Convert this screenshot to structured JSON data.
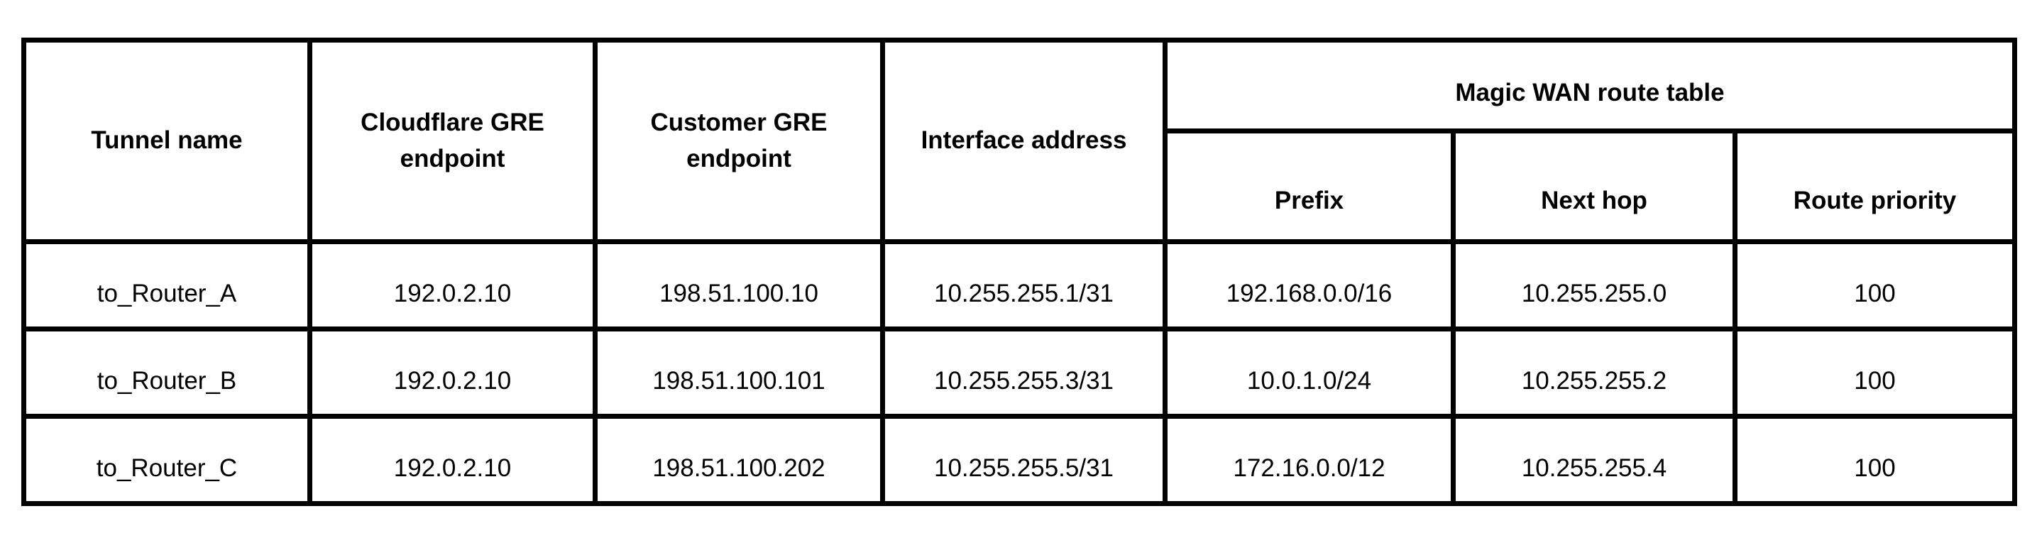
{
  "colors": {
    "border": "#000000",
    "text": "#000000",
    "background": "#ffffff"
  },
  "table": {
    "headers": {
      "tunnel_name": "Tunnel name",
      "cloudflare_gre_endpoint": "Cloudflare GRE endpoint",
      "customer_gre_endpoint": "Customer GRE endpoint",
      "interface_address": "Interface address",
      "magic_wan_route_table": "Magic WAN route table",
      "prefix": "Prefix",
      "next_hop": "Next hop",
      "route_priority": "Route priority"
    },
    "rows": [
      {
        "tunnel_name": "to_Router_A",
        "cloudflare_gre_endpoint": "192.0.2.10",
        "customer_gre_endpoint": "198.51.100.10",
        "interface_address": "10.255.255.1/31",
        "prefix": "192.168.0.0/16",
        "next_hop": "10.255.255.0",
        "route_priority": "100"
      },
      {
        "tunnel_name": "to_Router_B",
        "cloudflare_gre_endpoint": "192.0.2.10",
        "customer_gre_endpoint": "198.51.100.101",
        "interface_address": "10.255.255.3/31",
        "prefix": "10.0.1.0/24",
        "next_hop": "10.255.255.2",
        "route_priority": "100"
      },
      {
        "tunnel_name": "to_Router_C",
        "cloudflare_gre_endpoint": "192.0.2.10",
        "customer_gre_endpoint": "198.51.100.202",
        "interface_address": "10.255.255.5/31",
        "prefix": "172.16.0.0/12",
        "next_hop": "10.255.255.4",
        "route_priority": "100"
      }
    ]
  }
}
